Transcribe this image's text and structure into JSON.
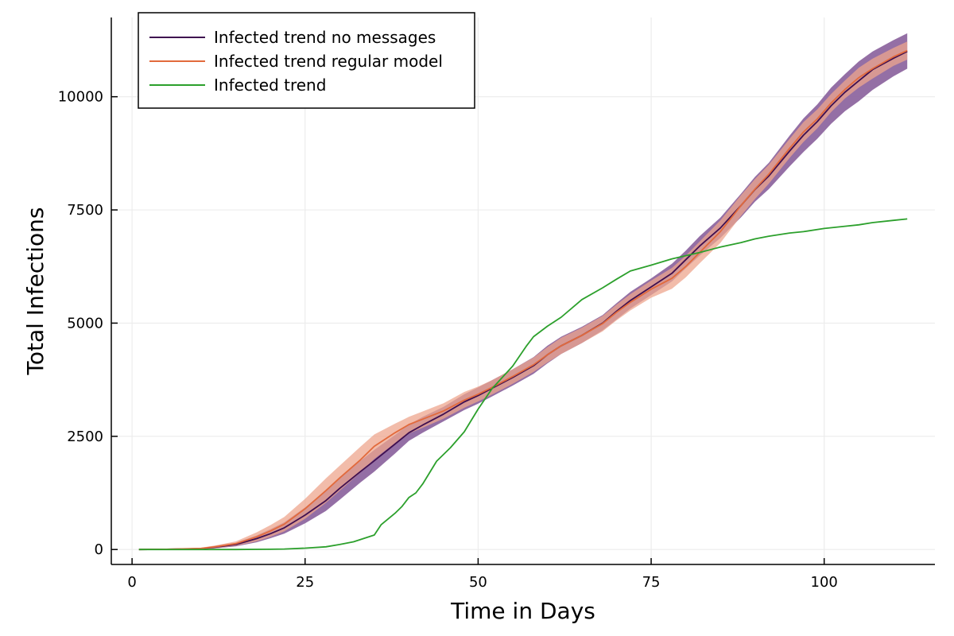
{
  "chart_data": {
    "type": "line",
    "title": "",
    "xlabel": "Time in Days",
    "ylabel": "Total Infections",
    "xlim": [
      -3,
      116
    ],
    "ylim": [
      -330,
      11750
    ],
    "xticks": [
      0,
      25,
      50,
      75,
      100
    ],
    "xtick_labels": [
      "0",
      "25",
      "50",
      "75",
      "100"
    ],
    "yticks": [
      0,
      2500,
      5000,
      7500,
      10000
    ],
    "ytick_labels": [
      "0",
      "2500",
      "5000",
      "7500",
      "10000"
    ],
    "grid": true,
    "legend_position": "top-left",
    "series": [
      {
        "name": "Infected trend no messages",
        "color": "#3f0f50",
        "band_color": "#8e67a0",
        "x": [
          1,
          5,
          10,
          12,
          15,
          18,
          20,
          22,
          25,
          28,
          30,
          33,
          35,
          38,
          40,
          42,
          45,
          48,
          50,
          52,
          55,
          58,
          60,
          62,
          65,
          68,
          70,
          72,
          75,
          78,
          80,
          82,
          85,
          88,
          90,
          92,
          95,
          97,
          99,
          101,
          103,
          105,
          107,
          110,
          112
        ],
        "y": [
          0,
          5,
          20,
          50,
          110,
          240,
          350,
          480,
          760,
          1080,
          1350,
          1720,
          1960,
          2330,
          2580,
          2750,
          2990,
          3260,
          3400,
          3560,
          3800,
          4060,
          4300,
          4500,
          4730,
          5000,
          5260,
          5500,
          5800,
          6100,
          6400,
          6700,
          7100,
          7600,
          7950,
          8250,
          8800,
          9150,
          9450,
          9800,
          10100,
          10350,
          10600,
          10850,
          11000
        ],
        "lower": [
          0,
          0,
          10,
          25,
          70,
          160,
          250,
          350,
          580,
          850,
          1100,
          1480,
          1720,
          2120,
          2400,
          2580,
          2830,
          3080,
          3220,
          3380,
          3620,
          3880,
          4110,
          4320,
          4560,
          4840,
          5080,
          5320,
          5620,
          5920,
          6210,
          6490,
          6880,
          7340,
          7680,
          7960,
          8460,
          8780,
          9070,
          9400,
          9680,
          9900,
          10150,
          10450,
          10620
        ],
        "upper": [
          0,
          10,
          30,
          80,
          150,
          310,
          450,
          600,
          930,
          1300,
          1600,
          1960,
          2200,
          2530,
          2760,
          2930,
          3150,
          3430,
          3580,
          3740,
          3980,
          4250,
          4500,
          4700,
          4920,
          5180,
          5440,
          5690,
          5990,
          6310,
          6600,
          6920,
          7330,
          7860,
          8230,
          8540,
          9140,
          9520,
          9830,
          10200,
          10500,
          10780,
          11000,
          11250,
          11400
        ]
      },
      {
        "name": "Infected trend regular model",
        "color": "#e26a3c",
        "band_color": "#eda58d",
        "x": [
          1,
          5,
          10,
          12,
          15,
          18,
          20,
          22,
          25,
          28,
          30,
          33,
          35,
          38,
          40,
          42,
          45,
          48,
          50,
          52,
          55,
          58,
          60,
          62,
          65,
          68,
          70,
          72,
          75,
          78,
          80,
          82,
          85,
          88,
          90,
          92,
          95,
          97,
          99,
          101,
          103,
          105,
          107,
          110,
          112
        ],
        "y": [
          0,
          5,
          25,
          60,
          130,
          280,
          410,
          560,
          900,
          1300,
          1580,
          1980,
          2280,
          2580,
          2760,
          2880,
          3060,
          3300,
          3430,
          3580,
          3820,
          4080,
          4300,
          4500,
          4730,
          4990,
          5240,
          5460,
          5750,
          5990,
          6250,
          6560,
          7020,
          7600,
          7960,
          8290,
          8860,
          9220,
          9510,
          9860,
          10160,
          10420,
          10620,
          10880,
          11020
        ],
        "lower": [
          0,
          0,
          10,
          30,
          80,
          180,
          280,
          400,
          680,
          1030,
          1300,
          1700,
          2000,
          2350,
          2560,
          2690,
          2890,
          3130,
          3270,
          3420,
          3660,
          3920,
          4130,
          4320,
          4560,
          4820,
          5060,
          5280,
          5560,
          5760,
          6010,
          6320,
          6770,
          7370,
          7740,
          8080,
          8650,
          9000,
          9300,
          9660,
          9960,
          10200,
          10400,
          10680,
          10820
        ],
        "upper": [
          0,
          10,
          40,
          90,
          180,
          380,
          540,
          720,
          1120,
          1570,
          1850,
          2270,
          2540,
          2780,
          2930,
          3050,
          3230,
          3480,
          3600,
          3740,
          3980,
          4240,
          4470,
          4680,
          4900,
          5160,
          5410,
          5640,
          5940,
          6220,
          6490,
          6800,
          7270,
          7830,
          8180,
          8500,
          9070,
          9440,
          9720,
          10060,
          10360,
          10640,
          10840,
          11080,
          11220
        ]
      },
      {
        "name": "Infected trend",
        "color": "#2ca02c",
        "x": [
          1,
          10,
          15,
          20,
          22,
          25,
          28,
          30,
          32,
          35,
          36,
          38,
          39,
          40,
          41,
          42,
          44,
          46,
          48,
          50,
          52,
          55,
          57,
          58,
          60,
          62,
          65,
          68,
          70,
          72,
          75,
          78,
          80,
          82,
          85,
          88,
          90,
          92,
          95,
          97,
          100,
          103,
          105,
          107,
          110,
          112
        ],
        "y": [
          0,
          0,
          0,
          5,
          10,
          30,
          60,
          110,
          170,
          320,
          550,
          800,
          950,
          1150,
          1250,
          1450,
          1950,
          2250,
          2600,
          3100,
          3550,
          4050,
          4500,
          4700,
          4930,
          5130,
          5520,
          5780,
          5970,
          6150,
          6280,
          6420,
          6490,
          6560,
          6680,
          6780,
          6860,
          6920,
          6990,
          7020,
          7090,
          7140,
          7170,
          7220,
          7270,
          7300
        ]
      }
    ]
  }
}
